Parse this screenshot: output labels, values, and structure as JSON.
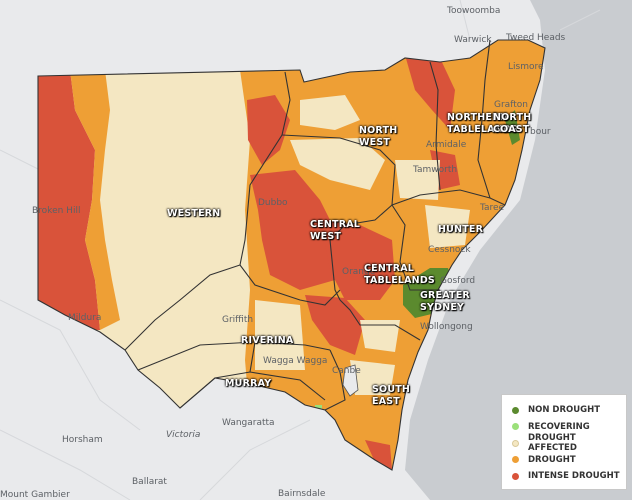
{
  "map": {
    "places": [
      {
        "key": "toowoomba",
        "label": "Toowoomba"
      },
      {
        "key": "warwick",
        "label": "Warwick"
      },
      {
        "key": "tweed-heads",
        "label": "Tweed Heads"
      },
      {
        "key": "lismore",
        "label": "Lismore"
      },
      {
        "key": "grafton",
        "label": "Grafton"
      },
      {
        "key": "armidale",
        "label": "Armidale"
      },
      {
        "key": "tamworth",
        "label": "Tamworth"
      },
      {
        "key": "broken-hill",
        "label": "Broken Hill"
      },
      {
        "key": "dubbo",
        "label": "Dubbo"
      },
      {
        "key": "orange",
        "label": "Orange"
      },
      {
        "key": "cessnock",
        "label": "Cessnock"
      },
      {
        "key": "taree",
        "label": "Taree"
      },
      {
        "key": "gosford",
        "label": "Gosford"
      },
      {
        "key": "wollongong",
        "label": "Wollongong"
      },
      {
        "key": "griffith",
        "label": "Griffith"
      },
      {
        "key": "wagga-wagga",
        "label": "Wagga Wagga"
      },
      {
        "key": "mildura",
        "label": "Mildura"
      },
      {
        "key": "canberra",
        "label": "Canbe"
      },
      {
        "key": "wangaratta",
        "label": "Wangaratta"
      },
      {
        "key": "victoria",
        "label": "Victoria"
      },
      {
        "key": "horsham",
        "label": "Horsham"
      },
      {
        "key": "ballarat",
        "label": "Ballarat"
      },
      {
        "key": "mount-gambier",
        "label": "Mount Gambier"
      },
      {
        "key": "bairnsdale",
        "label": "Bairnsdale"
      },
      {
        "key": "coffs",
        "label": "bour"
      }
    ],
    "regions": [
      {
        "key": "western",
        "label": "WESTERN"
      },
      {
        "key": "north-west",
        "label": "NORTH\nWEST"
      },
      {
        "key": "northern-tablelands",
        "label": "NORTHERN\nTABLELANDS"
      },
      {
        "key": "north-coast",
        "label": "NORTH\nCOAST"
      },
      {
        "key": "central-west",
        "label": "CENTRAL\nWEST"
      },
      {
        "key": "hunter",
        "label": "HUNTER"
      },
      {
        "key": "central-tablelands",
        "label": "CENTRAL\nTABLELANDS"
      },
      {
        "key": "greater-sydney",
        "label": "GREATER\nSYDNEY"
      },
      {
        "key": "riverina",
        "label": "RIVERINA"
      },
      {
        "key": "murray",
        "label": "MURRAY"
      },
      {
        "key": "south-east",
        "label": "SOUTH\nEAST"
      }
    ]
  },
  "legend": {
    "items": [
      {
        "label": "NON DROUGHT",
        "color": "#5b8a2e"
      },
      {
        "label": "RECOVERING",
        "color": "#9be07a"
      },
      {
        "label": "DROUGHT AFFECTED",
        "color": "#f4e7c2"
      },
      {
        "label": "DROUGHT",
        "color": "#ee9f35"
      },
      {
        "label": "INTENSE DROUGHT",
        "color": "#d9533a"
      }
    ]
  },
  "colors": {
    "non_drought": "#5b8a2e",
    "recovering": "#9be07a",
    "drought_affected": "#f4e7c2",
    "drought": "#ee9f35",
    "intense_drought": "#d9533a",
    "land": "#e9eaec",
    "sea": "#c9ccd0"
  }
}
